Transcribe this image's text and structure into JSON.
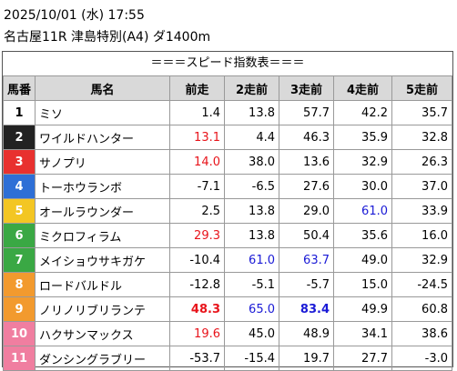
{
  "header": {
    "datetime": "2025/10/01 (水) 17:55",
    "race": "名古屋11R 津島特別(A4) ダ1400m"
  },
  "table": {
    "title": "＝＝＝スピード指数表＝＝＝",
    "columns": [
      "馬番",
      "馬名",
      "前走",
      "2走前",
      "3走前",
      "4走前",
      "5走前"
    ],
    "rows": [
      {
        "num": "1",
        "name": "ミソ",
        "bg": "#ffffff",
        "fg": "#000000",
        "values": [
          {
            "text": "1.4"
          },
          {
            "text": "13.8"
          },
          {
            "text": "57.7"
          },
          {
            "text": "42.2"
          },
          {
            "text": "35.7"
          }
        ]
      },
      {
        "num": "2",
        "name": "ワイルドハンター",
        "bg": "#222222",
        "fg": "#ffffff",
        "values": [
          {
            "text": "13.1",
            "color": "#e8141b"
          },
          {
            "text": "4.4"
          },
          {
            "text": "46.3"
          },
          {
            "text": "35.9"
          },
          {
            "text": "32.8"
          }
        ]
      },
      {
        "num": "3",
        "name": "サノプリ",
        "bg": "#e8312f",
        "fg": "#ffffff",
        "values": [
          {
            "text": "14.0",
            "color": "#e8141b"
          },
          {
            "text": "38.0"
          },
          {
            "text": "13.6"
          },
          {
            "text": "32.9"
          },
          {
            "text": "26.3"
          }
        ]
      },
      {
        "num": "4",
        "name": "トーホウランボ",
        "bg": "#2e6fd6",
        "fg": "#ffffff",
        "values": [
          {
            "text": "-7.1"
          },
          {
            "text": "-6.5"
          },
          {
            "text": "27.6"
          },
          {
            "text": "30.0"
          },
          {
            "text": "37.0"
          }
        ]
      },
      {
        "num": "5",
        "name": "オールラウンダー",
        "bg": "#f3c623",
        "fg": "#ffffff",
        "values": [
          {
            "text": "2.5"
          },
          {
            "text": "13.8"
          },
          {
            "text": "29.0"
          },
          {
            "text": "61.0",
            "color": "#1a1ad6"
          },
          {
            "text": "33.9"
          }
        ]
      },
      {
        "num": "6",
        "name": "ミクロフィラム",
        "bg": "#3aa844",
        "fg": "#ffffff",
        "values": [
          {
            "text": "29.3",
            "color": "#e8141b"
          },
          {
            "text": "13.8"
          },
          {
            "text": "50.4"
          },
          {
            "text": "35.6"
          },
          {
            "text": "16.0"
          }
        ]
      },
      {
        "num": "7",
        "name": "メイショウサキガケ",
        "bg": "#3aa844",
        "fg": "#ffffff",
        "values": [
          {
            "text": "-10.4"
          },
          {
            "text": "61.0",
            "color": "#1a1ad6"
          },
          {
            "text": "63.7",
            "color": "#1a1ad6"
          },
          {
            "text": "49.0"
          },
          {
            "text": "32.9"
          }
        ]
      },
      {
        "num": "8",
        "name": "ロードバルドル",
        "bg": "#f29a2e",
        "fg": "#ffffff",
        "values": [
          {
            "text": "-12.8"
          },
          {
            "text": "-5.1"
          },
          {
            "text": "-5.7"
          },
          {
            "text": "15.0"
          },
          {
            "text": "-24.5"
          }
        ]
      },
      {
        "num": "9",
        "name": "ノリノリブリランテ",
        "bg": "#f29a2e",
        "fg": "#ffffff",
        "values": [
          {
            "text": "48.3",
            "color": "#e8141b",
            "bold": true
          },
          {
            "text": "65.0",
            "color": "#1a1ad6"
          },
          {
            "text": "83.4",
            "color": "#1a1ad6",
            "bold": true
          },
          {
            "text": "49.9"
          },
          {
            "text": "60.8"
          }
        ]
      },
      {
        "num": "10",
        "name": "ハクサンマックス",
        "bg": "#f07ea0",
        "fg": "#ffffff",
        "values": [
          {
            "text": "19.6",
            "color": "#e8141b"
          },
          {
            "text": "45.0"
          },
          {
            "text": "48.9"
          },
          {
            "text": "34.1"
          },
          {
            "text": "38.6"
          }
        ]
      },
      {
        "num": "11",
        "name": "ダンシングラブリー",
        "bg": "#f07ea0",
        "fg": "#ffffff",
        "values": [
          {
            "text": "-53.7"
          },
          {
            "text": "-15.4"
          },
          {
            "text": "19.7"
          },
          {
            "text": "27.7"
          },
          {
            "text": "-3.0"
          }
        ]
      }
    ]
  }
}
